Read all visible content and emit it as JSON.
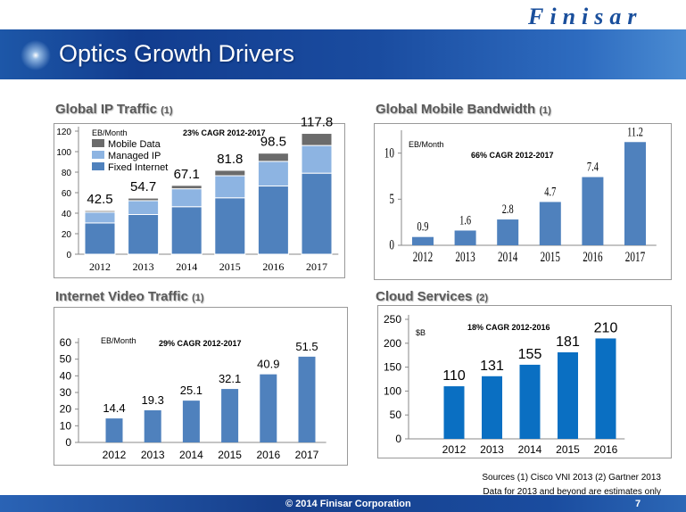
{
  "header": {
    "logo": "Finisar",
    "title": "Optics Growth Drivers"
  },
  "colors": {
    "fixed": "#4f81bd",
    "managed": "#8db4e2",
    "mobile": "#6b6b6b",
    "bar": "#4f81bd",
    "cloud": "#0a6fc2"
  },
  "chart_data": [
    {
      "id": "ip",
      "type": "bar",
      "stacked": true,
      "title": "Global IP Traffic",
      "title_note": "(1)",
      "unit": "EB/Month",
      "annotation": "23% CAGR 2012-2017",
      "categories": [
        "2012",
        "2013",
        "2014",
        "2015",
        "2016",
        "2017"
      ],
      "series": [
        {
          "name": "Fixed Internet",
          "values": [
            30.5,
            38.7,
            46.3,
            55.0,
            66.5,
            79.0
          ]
        },
        {
          "name": "Managed IP",
          "values": [
            10.5,
            13.5,
            17.5,
            21.5,
            24.0,
            27.0
          ]
        },
        {
          "name": "Mobile Data",
          "values": [
            1.5,
            2.5,
            3.3,
            5.3,
            8.0,
            11.8
          ]
        }
      ],
      "totals": [
        "42.5",
        "54.7",
        "67.1",
        "81.8",
        "98.5",
        "117.8"
      ],
      "ylim": [
        0,
        120
      ],
      "yticks": [
        "0",
        "20",
        "40",
        "60",
        "80",
        "100",
        "120"
      ],
      "legend": "top-left"
    },
    {
      "id": "mobile",
      "type": "bar",
      "title": "Global Mobile Bandwidth",
      "title_note": "(1)",
      "unit": "EB/Month",
      "annotation": "66% CAGR 2012-2017",
      "categories": [
        "2012",
        "2013",
        "2014",
        "2015",
        "2016",
        "2017"
      ],
      "values": [
        0.9,
        1.6,
        2.8,
        4.7,
        7.4,
        11.2
      ],
      "labels": [
        "0.9",
        "1.6",
        "2.8",
        "4.7",
        "7.4",
        "11.2"
      ],
      "ylim": [
        0,
        12
      ],
      "yticks": [
        "0",
        "5",
        "10"
      ]
    },
    {
      "id": "video",
      "type": "bar",
      "title": "Internet Video Traffic",
      "title_note": "(1)",
      "unit": "EB/Month",
      "annotation": "29% CAGR 2012-2017",
      "categories": [
        "2012",
        "2013",
        "2014",
        "2015",
        "2016",
        "2017"
      ],
      "values": [
        14.4,
        19.3,
        25.1,
        32.1,
        40.9,
        51.5
      ],
      "labels": [
        "14.4",
        "19.3",
        "25.1",
        "32.1",
        "40.9",
        "51.5"
      ],
      "ylim": [
        0,
        60
      ],
      "yticks": [
        "0",
        "10",
        "20",
        "30",
        "40",
        "50",
        "60"
      ]
    },
    {
      "id": "cloud",
      "type": "bar",
      "title": "Cloud Services",
      "title_note": "(2)",
      "unit": "$B",
      "annotation": "18% CAGR 2012-2016",
      "categories": [
        "2012",
        "2013",
        "2014",
        "2015",
        "2016"
      ],
      "values": [
        110,
        131,
        155,
        181,
        210
      ],
      "labels": [
        "110",
        "131",
        "155",
        "181",
        "210"
      ],
      "ylim": [
        0,
        250
      ],
      "yticks": [
        "0",
        "50",
        "100",
        "150",
        "200",
        "250"
      ]
    }
  ],
  "sources": "Sources (1) Cisco VNI 2013 (2) Gartner 2013",
  "estimates_note": "Data for 2013 and beyond are estimates only",
  "footer": {
    "copyright": "© 2014 Finisar Corporation",
    "page": "7"
  }
}
